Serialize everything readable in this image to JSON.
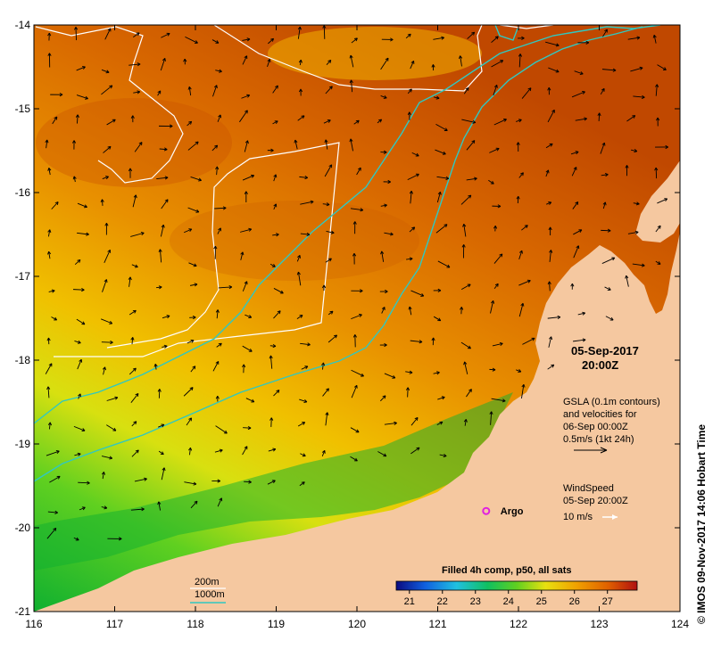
{
  "map": {
    "lon_ticks": [
      "116",
      "117",
      "118",
      "119",
      "120",
      "121",
      "122",
      "123",
      "124"
    ],
    "lat_ticks": [
      "-14",
      "-15",
      "-16",
      "-17",
      "-18",
      "-19",
      "-20",
      "-21"
    ],
    "lon_range": [
      116,
      124
    ],
    "lat_range": [
      -21,
      -14
    ],
    "date_line": "05-Sep-2017",
    "time_line": "20:00Z",
    "gsla_lines": [
      "GSLA (0.1m contours)",
      "and velocities for",
      "06-Sep 00:00Z",
      "0.5m/s (1kt 24h)"
    ],
    "wind_lines": [
      "WindSpeed",
      "05-Sep 20:00Z",
      "10 m/s"
    ],
    "argo_label": "Argo",
    "argo_position": [
      121.6,
      -19.8
    ],
    "isobath_200": "200m",
    "isobath_1000": "1000m",
    "isobath_200_color": "#ffffff",
    "isobath_1000_color": "#30c8c0",
    "colorbar_title": "Filled 4h comp, p50, all sats",
    "colorbar_ticks": [
      "21",
      "22",
      "23",
      "24",
      "25",
      "26",
      "27"
    ],
    "colorbar_range": [
      20.6,
      27.9
    ],
    "credit": "© IMOS 09-Nov-2017 14:06 Hobart Time",
    "land_color": "#f5c8a0",
    "argo_color": "#e020e0"
  }
}
